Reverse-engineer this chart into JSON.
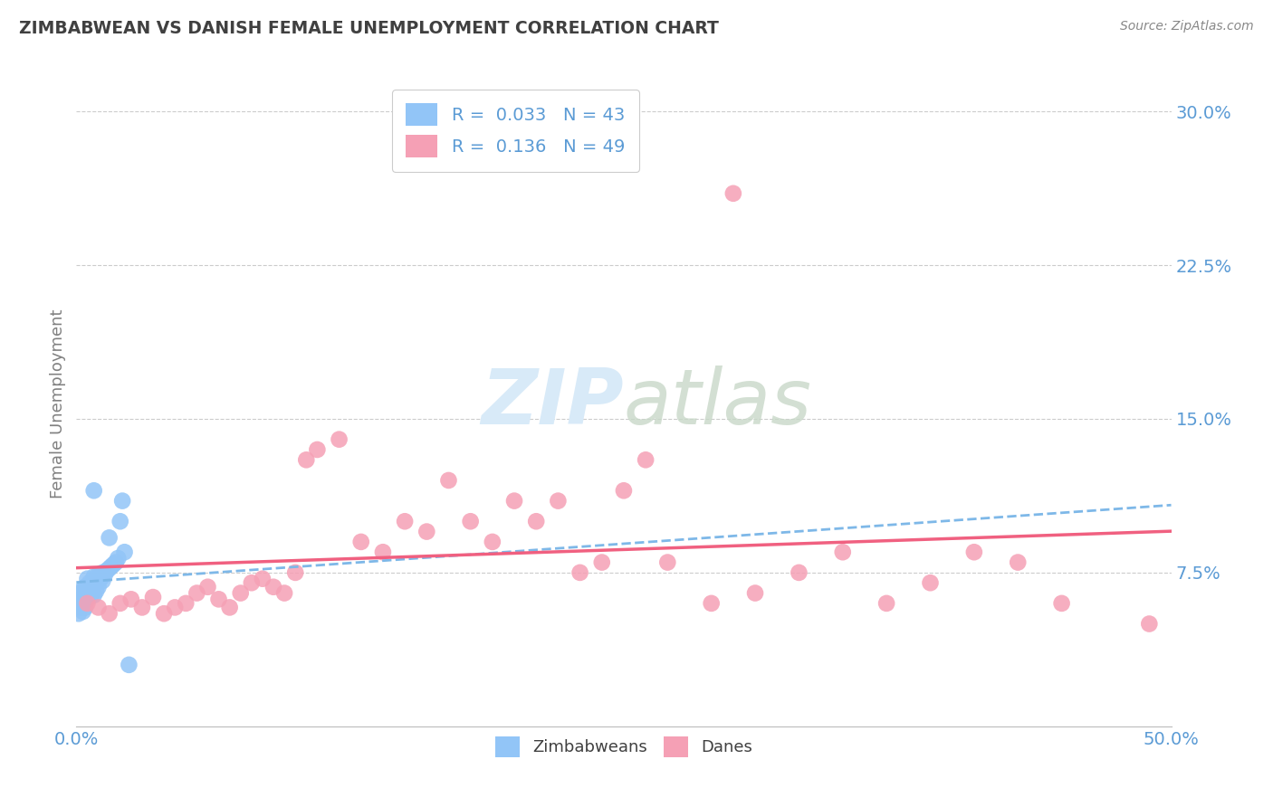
{
  "title": "ZIMBABWEAN VS DANISH FEMALE UNEMPLOYMENT CORRELATION CHART",
  "source_text": "Source: ZipAtlas.com",
  "ylabel": "Female Unemployment",
  "xlim": [
    0.0,
    0.5
  ],
  "ylim": [
    0.0,
    0.315
  ],
  "ytick_positions": [
    0.075,
    0.15,
    0.225,
    0.3
  ],
  "ytick_labels": [
    "7.5%",
    "15.0%",
    "22.5%",
    "30.0%"
  ],
  "blue_color": "#92C5F7",
  "pink_color": "#F5A0B5",
  "blue_line_color": "#7EB8E8",
  "pink_line_color": "#F06080",
  "R_blue": 0.033,
  "N_blue": 43,
  "R_pink": 0.136,
  "N_pink": 49,
  "zimbabwe_x": [
    0.001,
    0.001,
    0.002,
    0.002,
    0.002,
    0.003,
    0.003,
    0.003,
    0.003,
    0.004,
    0.004,
    0.004,
    0.005,
    0.005,
    0.005,
    0.006,
    0.006,
    0.006,
    0.007,
    0.007,
    0.008,
    0.008,
    0.008,
    0.009,
    0.009,
    0.01,
    0.01,
    0.011,
    0.012,
    0.012,
    0.013,
    0.014,
    0.015,
    0.016,
    0.017,
    0.018,
    0.019,
    0.02,
    0.021,
    0.022,
    0.024,
    0.015,
    0.008
  ],
  "zimbabwe_y": [
    0.06,
    0.055,
    0.058,
    0.062,
    0.065,
    0.056,
    0.06,
    0.063,
    0.067,
    0.058,
    0.061,
    0.068,
    0.062,
    0.066,
    0.072,
    0.063,
    0.068,
    0.07,
    0.065,
    0.069,
    0.064,
    0.07,
    0.073,
    0.066,
    0.072,
    0.068,
    0.074,
    0.072,
    0.071,
    0.075,
    0.074,
    0.076,
    0.077,
    0.078,
    0.079,
    0.08,
    0.082,
    0.1,
    0.11,
    0.085,
    0.03,
    0.092,
    0.115
  ],
  "danes_x": [
    0.005,
    0.01,
    0.015,
    0.02,
    0.025,
    0.03,
    0.035,
    0.04,
    0.045,
    0.05,
    0.055,
    0.06,
    0.065,
    0.07,
    0.075,
    0.08,
    0.085,
    0.09,
    0.095,
    0.1,
    0.105,
    0.11,
    0.12,
    0.13,
    0.14,
    0.15,
    0.16,
    0.17,
    0.18,
    0.19,
    0.2,
    0.21,
    0.22,
    0.23,
    0.24,
    0.25,
    0.27,
    0.29,
    0.31,
    0.33,
    0.35,
    0.37,
    0.39,
    0.41,
    0.43,
    0.45,
    0.3,
    0.26,
    0.49
  ],
  "danes_y": [
    0.06,
    0.058,
    0.055,
    0.06,
    0.062,
    0.058,
    0.063,
    0.055,
    0.058,
    0.06,
    0.065,
    0.068,
    0.062,
    0.058,
    0.065,
    0.07,
    0.072,
    0.068,
    0.065,
    0.075,
    0.13,
    0.135,
    0.14,
    0.09,
    0.085,
    0.1,
    0.095,
    0.12,
    0.1,
    0.09,
    0.11,
    0.1,
    0.11,
    0.075,
    0.08,
    0.115,
    0.08,
    0.06,
    0.065,
    0.075,
    0.085,
    0.06,
    0.07,
    0.085,
    0.08,
    0.06,
    0.26,
    0.13,
    0.05
  ],
  "background_color": "#FFFFFF",
  "grid_color": "#CCCCCC",
  "title_color": "#404040",
  "axis_label_color": "#808080",
  "tick_label_color": "#5B9BD5",
  "watermark_color": "#D8EAF8"
}
